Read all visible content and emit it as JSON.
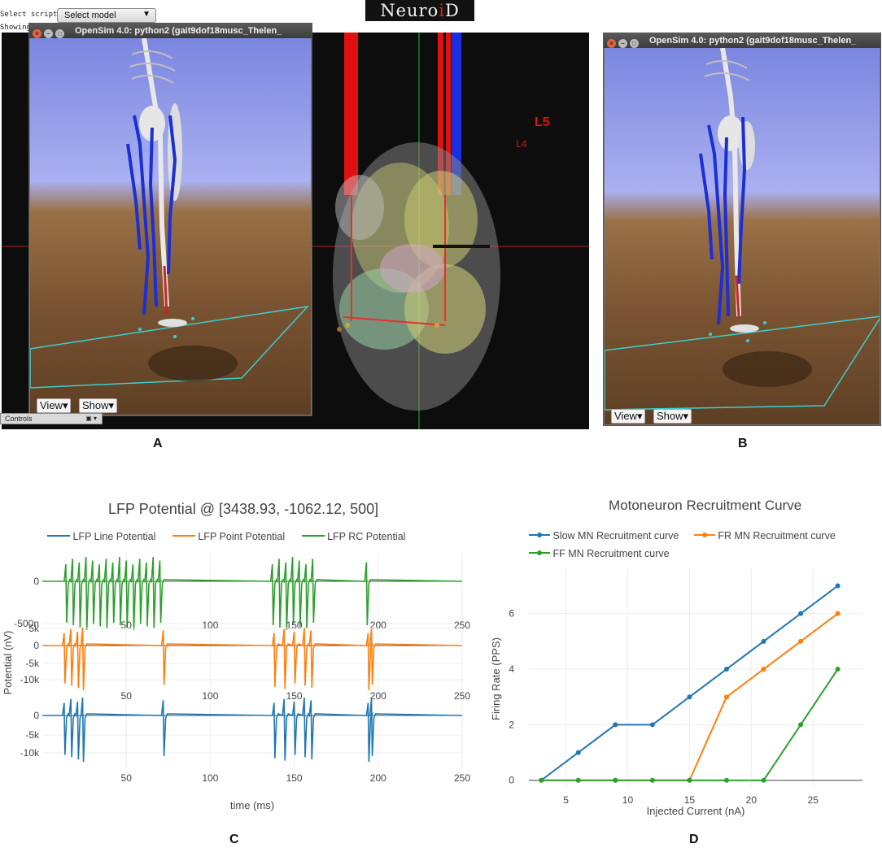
{
  "toolbar": {
    "select_script_label": "Select script:",
    "showing_label": "Showing",
    "select_model_value": "Select model"
  },
  "logo": {
    "text_part1": "Neuro",
    "text_dot": "i",
    "text_part2": "D"
  },
  "opensim_left": {
    "title": "OpenSim 4.0: python2 (gait9dof18musc_Thelen_",
    "view_label": "View",
    "show_label": "Show"
  },
  "opensim_right": {
    "title": "OpenSim 4.0: python2 (gait9dof18musc_Thelen_",
    "view_label": "View",
    "show_label": "Show"
  },
  "controls_bar": {
    "label": "Controls"
  },
  "spinal_view": {
    "label_l5": "L5",
    "label_l4": "L4"
  },
  "panel_letters": {
    "a": "A",
    "b": "B",
    "c": "C",
    "d": "D"
  },
  "colors": {
    "blue": "#1f77b4",
    "orange": "#ff7f0e",
    "green": "#2ca02c",
    "muscle_blue": "#1a2fd6",
    "muscle_red": "#d42020",
    "floor_cyan": "#3ccfd0"
  },
  "chart_data": [
    {
      "type": "line",
      "title": "LFP Potential @ [3438.93, -1062.12, 500]",
      "xlabel": "time (ms)",
      "ylabel": "Potential (nV)",
      "xlim": [
        0,
        250
      ],
      "x_ticks": [
        "50",
        "100",
        "150",
        "200",
        "250"
      ],
      "legend_position": "top",
      "series": [
        {
          "name": "LFP Line Potential",
          "color": "#1f77b4",
          "y_ticks": [
            "0",
            "-5k",
            "-10k"
          ],
          "spike_times_ms": [
            13,
            17,
            21,
            24,
            72,
            138,
            144,
            150,
            156,
            160,
            194,
            196
          ],
          "peak_min": -13000,
          "peak_max": 4500
        },
        {
          "name": "LFP Point Potential",
          "color": "#ff7f0e",
          "y_ticks": [
            "5k",
            "0",
            "-5k",
            "-10k"
          ],
          "spike_times_ms": [
            13,
            17,
            21,
            24,
            72,
            138,
            144,
            150,
            156,
            160,
            194,
            196
          ],
          "peak_min": -12500,
          "peak_max": 4500
        },
        {
          "name": "LFP RC Potential",
          "color": "#2ca02c",
          "y_ticks": [
            "0",
            "-500n"
          ],
          "spike_times_ms": [
            14,
            18,
            22,
            26,
            30,
            34,
            38,
            42,
            46,
            50,
            54,
            58,
            62,
            66,
            70,
            137,
            141,
            145,
            149,
            153,
            157,
            161,
            193
          ],
          "peak_min": -600,
          "peak_max": 160
        }
      ]
    },
    {
      "type": "line",
      "title": "Motoneuron Recruitment Curve",
      "xlabel": "Injected Current (nA)",
      "ylabel": "Firing Rate (PPS)",
      "xlim": [
        2,
        29
      ],
      "ylim": [
        -0.3,
        7.6
      ],
      "x_ticks": [
        5,
        10,
        15,
        20,
        25
      ],
      "y_ticks": [
        0,
        2,
        4,
        6
      ],
      "legend_position": "top",
      "series": [
        {
          "name": "Slow MN Recruitment curve",
          "color": "#1f77b4",
          "x": [
            3,
            6,
            9,
            12,
            15,
            18,
            21,
            24,
            27
          ],
          "y": [
            0,
            1,
            2,
            2,
            3,
            4,
            5,
            6,
            7
          ]
        },
        {
          "name": "FR MN Recruitment curve",
          "color": "#ff7f0e",
          "x": [
            3,
            6,
            9,
            12,
            15,
            18,
            21,
            24,
            27
          ],
          "y": [
            0,
            0,
            0,
            0,
            0,
            3,
            4,
            5,
            6
          ]
        },
        {
          "name": "FF MN Recruitment curve",
          "color": "#2ca02c",
          "x": [
            3,
            6,
            9,
            12,
            15,
            18,
            21,
            24,
            27
          ],
          "y": [
            0,
            0,
            0,
            0,
            0,
            0,
            0,
            2,
            4
          ]
        }
      ]
    }
  ]
}
